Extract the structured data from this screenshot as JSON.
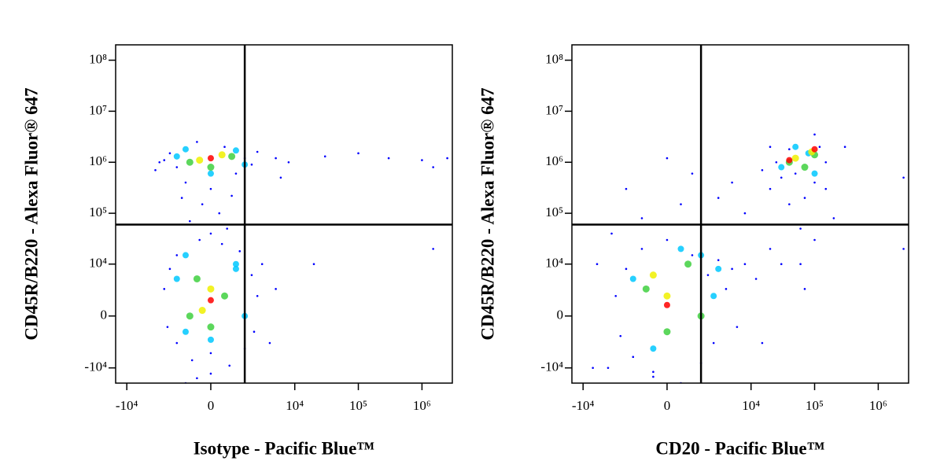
{
  "chart_data": [
    {
      "type": "scatter",
      "x_label": "Isotype - Pacific Blue™",
      "y_label": "CD45R/B220 - Alexa Fluor® 647",
      "scale": "logicle",
      "xlim": [
        -15000,
        3000000
      ],
      "ylim": [
        -20000,
        200000000
      ],
      "xticks": [
        {
          "value": -10000,
          "label": "-10⁴"
        },
        0,
        {
          "value": 10000,
          "label": "10⁴"
        },
        {
          "value": 100000,
          "label": "10⁵"
        },
        {
          "value": 1000000,
          "label": "10⁶"
        }
      ],
      "yticks": [
        {
          "value": -10000,
          "label": "-10⁴"
        },
        0,
        {
          "value": 10000,
          "label": "10⁴"
        },
        {
          "value": 100000,
          "label": "10⁵"
        },
        {
          "value": 1000000,
          "label": "10⁶"
        },
        {
          "value": 10000000,
          "label": "10⁷"
        },
        {
          "value": 100000000,
          "label": "10⁸"
        }
      ],
      "x_gate": 1500,
      "y_gate": 60000,
      "series": [
        {
          "color": "#0000ff",
          "x": [
            -2000,
            -1500,
            -1000,
            -500,
            0,
            500,
            1000,
            1500,
            2000,
            -2500,
            2500,
            -1200,
            800,
            -300,
            300,
            -800,
            600,
            0,
            -400,
            400,
            1200,
            -1500,
            -2000,
            2000,
            -2500,
            2500,
            -2200,
            2200,
            -1500,
            1500,
            0,
            -700,
            700,
            0,
            -1000,
            500,
            -3000,
            -3500,
            5000,
            8000,
            30000,
            100000,
            300000,
            1000000,
            2500000,
            1500000,
            6000,
            3000,
            20000,
            1500000,
            5000,
            4000,
            -500
          ],
          "y": [
            1500000,
            800000,
            400000,
            2500000,
            300000,
            2000000,
            600000,
            1200000,
            900000,
            1100000,
            1600000,
            200000,
            220000,
            150000,
            100000,
            70000,
            50000,
            40000,
            30000,
            25000,
            18000,
            15000,
            8000,
            6000,
            3000,
            2000,
            -1000,
            -1500,
            -3000,
            -4000,
            -5000,
            -7000,
            -9000,
            -13000,
            -20000,
            -25000,
            1000000,
            700000,
            1200000,
            1000000,
            1300000,
            1500000,
            1200000,
            1100000,
            1200000,
            800000,
            500000,
            10000,
            10000,
            20000,
            3000,
            -3000,
            -16000
          ]
        },
        {
          "color": "#00c8ff",
          "x": [
            -1500,
            1500,
            0,
            -1000,
            1000,
            -1000,
            1000,
            -1500,
            1500,
            0,
            -1000,
            1000
          ],
          "y": [
            1300000,
            900000,
            600000,
            1800000,
            1700000,
            15000,
            10000,
            5000,
            0,
            -2500,
            -1500,
            8000
          ]
        },
        {
          "color": "#40d040",
          "x": [
            -800,
            800,
            0,
            -500,
            500,
            0,
            -800
          ],
          "y": [
            1000000,
            1300000,
            800000,
            5000,
            2000,
            -1000,
            0
          ]
        },
        {
          "color": "#f0f000",
          "x": [
            -400,
            400,
            0,
            -300
          ],
          "y": [
            1100000,
            1400000,
            3000,
            500
          ]
        },
        {
          "color": "#ff0000",
          "x": [
            0,
            0
          ],
          "y": [
            1200000,
            1500
          ]
        }
      ]
    },
    {
      "type": "scatter",
      "x_label": "CD20 - Pacific Blue™",
      "y_label": "CD45R/B220 - Alexa Fluor® 647",
      "scale": "logicle",
      "xlim": [
        -15000,
        3000000
      ],
      "ylim": [
        -20000,
        200000000
      ],
      "xticks": [
        {
          "value": -10000,
          "label": "-10⁴"
        },
        0,
        {
          "value": 10000,
          "label": "10⁴"
        },
        {
          "value": 100000,
          "label": "10⁵"
        },
        {
          "value": 1000000,
          "label": "10⁶"
        }
      ],
      "yticks": [
        {
          "value": -10000,
          "label": "-10⁴"
        },
        0,
        {
          "value": 10000,
          "label": "10⁴"
        },
        {
          "value": 100000,
          "label": "10⁵"
        },
        {
          "value": 1000000,
          "label": "10⁶"
        },
        {
          "value": 10000000,
          "label": "10⁷"
        },
        {
          "value": 100000000,
          "label": "10⁸"
        }
      ],
      "x_gate": 1500,
      "y_gate": 60000,
      "series": [
        {
          "color": "#0000ff",
          "x": [
            -3000,
            -2500,
            -2000,
            -1500,
            -1000,
            -500,
            0,
            500,
            1000,
            1500,
            2000,
            2500,
            3000,
            4000,
            5000,
            6000,
            8000,
            12000,
            20000,
            30000,
            -4000,
            -6000,
            -3500,
            -1000,
            500,
            -2000,
            1000,
            0,
            3000,
            5000,
            8000,
            15000,
            20000,
            25000,
            40000,
            60000,
            100000,
            200000,
            70000,
            150000,
            120000,
            100000,
            20000,
            30000,
            50000,
            100000,
            150000,
            40000,
            300000,
            -7000,
            -500,
            60000,
            15000,
            2500000,
            2500000,
            70000
          ],
          "y": [
            2000,
            -2000,
            8000,
            -6000,
            20000,
            -12000,
            30000,
            -20000,
            15000,
            -8000,
            6000,
            -3000,
            12000,
            3000,
            8000,
            -1000,
            10000,
            5000,
            20000,
            10000,
            -10000,
            10000,
            40000,
            80000,
            150000,
            300000,
            600000,
            1200000,
            200000,
            400000,
            100000,
            700000,
            300000,
            1000000,
            150000,
            50000,
            30000,
            80000,
            200000,
            300000,
            2000000,
            3500000,
            2000000,
            500000,
            600000,
            400000,
            1000000,
            1800000,
            2000000,
            -10000,
            -15000,
            10000,
            -3000,
            500000,
            20000,
            3000
          ]
        },
        {
          "color": "#00c8ff",
          "x": [
            -1500,
            1500,
            2500,
            -500,
            500,
            3000,
            30000,
            80000,
            100000,
            50000
          ],
          "y": [
            5000,
            15000,
            2000,
            -4000,
            20000,
            8000,
            800000,
            1500000,
            600000,
            2000000
          ]
        },
        {
          "color": "#40d040",
          "x": [
            -800,
            800,
            0,
            1500,
            40000,
            70000,
            100000
          ],
          "y": [
            3000,
            10000,
            -1500,
            0,
            1000000,
            800000,
            1400000
          ]
        },
        {
          "color": "#f0f000",
          "x": [
            0,
            -500,
            50000,
            90000
          ],
          "y": [
            2000,
            6000,
            1200000,
            1600000
          ]
        },
        {
          "color": "#ff0000",
          "x": [
            0,
            40000,
            100000
          ],
          "y": [
            1000,
            1100000,
            1800000
          ]
        }
      ]
    }
  ]
}
